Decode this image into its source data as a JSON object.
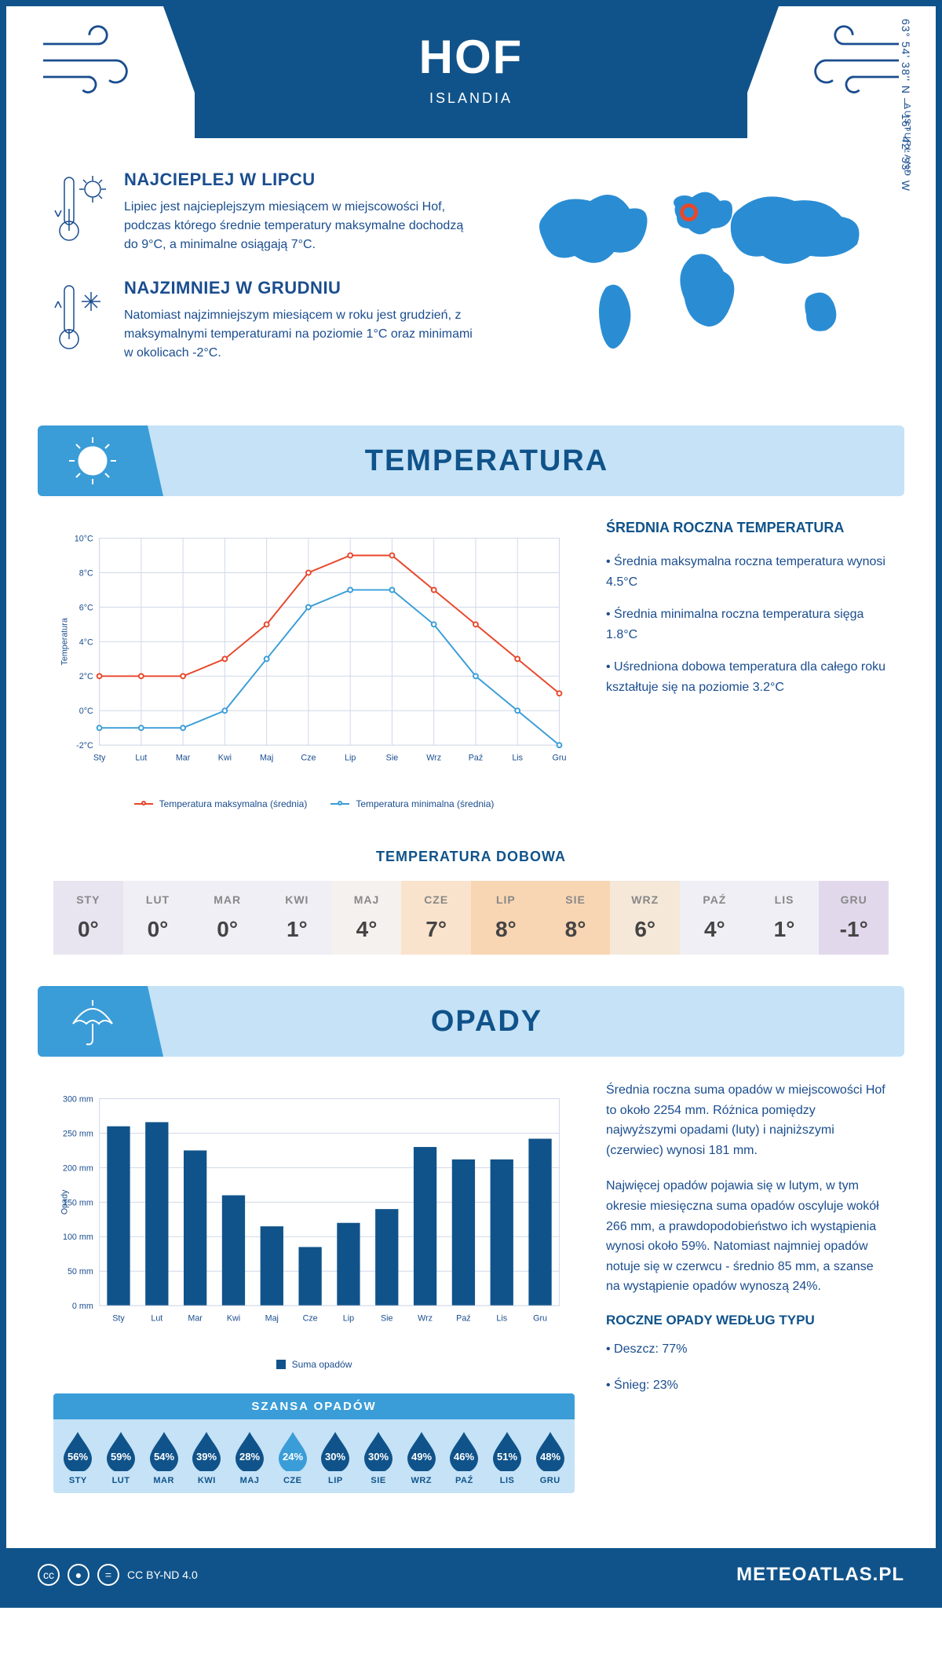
{
  "header": {
    "city": "HOF",
    "country": "ISLANDIA"
  },
  "intro": {
    "hot": {
      "title": "NAJCIEPLEJ W LIPCU",
      "text": "Lipiec jest najcieplejszym miesiącem w miejscowości Hof, podczas którego średnie temperatury maksymalne dochodzą do 9°C, a minimalne osiągają 7°C."
    },
    "cold": {
      "title": "NAJZIMNIEJ W GRUDNIU",
      "text": "Natomiast najzimniejszym miesiącem w roku jest grudzień, z maksymalnymi temperaturami na poziomie 1°C oraz minimami w okolicach -2°C."
    },
    "region": "AUSTURLAND",
    "coords": "63° 54' 38'' N — 16° 42' 33'' W",
    "marker": {
      "cx_pct": 47,
      "cy_pct": 21,
      "color": "#e8472b"
    }
  },
  "temperature": {
    "section_title": "TEMPERATURA",
    "chart": {
      "type": "line",
      "months": [
        "Sty",
        "Lut",
        "Mar",
        "Kwi",
        "Maj",
        "Cze",
        "Lip",
        "Sie",
        "Wrz",
        "Paź",
        "Lis",
        "Gru"
      ],
      "y_label": "Temperatura",
      "ylim": [
        -2,
        10
      ],
      "ytick_step": 2,
      "y_suffix": "°C",
      "grid_color": "#d0d8e8",
      "background_color": "#ffffff",
      "series": [
        {
          "name": "Temperatura maksymalna (średnia)",
          "color": "#e8472b",
          "values": [
            2,
            2,
            2,
            3,
            5,
            8,
            9,
            9,
            7,
            5,
            3,
            1
          ]
        },
        {
          "name": "Temperatura minimalna (średnia)",
          "color": "#3a9dd8",
          "values": [
            -1,
            -1,
            -1,
            0,
            3,
            6,
            7,
            7,
            5,
            2,
            0,
            -2
          ]
        }
      ],
      "line_width": 2,
      "marker_radius": 3,
      "label_fontsize": 11
    },
    "stats": {
      "title": "ŚREDNIA ROCZNA TEMPERATURA",
      "bullets": [
        "• Średnia maksymalna roczna temperatura wynosi 4.5°C",
        "• Średnia minimalna roczna temperatura sięga 1.8°C",
        "• Uśredniona dobowa temperatura dla całego roku kształtuje się na poziomie 3.2°C"
      ]
    },
    "daily": {
      "title": "TEMPERATURA DOBOWA",
      "months": [
        "STY",
        "LUT",
        "MAR",
        "KWI",
        "MAJ",
        "CZE",
        "LIP",
        "SIE",
        "WRZ",
        "PAŹ",
        "LIS",
        "GRU"
      ],
      "values": [
        "0°",
        "0°",
        "0°",
        "1°",
        "4°",
        "7°",
        "8°",
        "8°",
        "6°",
        "4°",
        "1°",
        "-1°"
      ],
      "bg_colors": [
        "#e8e4f0",
        "#efeff5",
        "#efeff5",
        "#efeff5",
        "#f5f1ee",
        "#fae3cc",
        "#f8d6b3",
        "#f8d6b3",
        "#f5e8d8",
        "#efeff5",
        "#efeff5",
        "#e2d8ec"
      ]
    }
  },
  "precipitation": {
    "section_title": "OPADY",
    "chart": {
      "type": "bar",
      "months": [
        "Sty",
        "Lut",
        "Mar",
        "Kwi",
        "Maj",
        "Cze",
        "Lip",
        "Sie",
        "Wrz",
        "Paź",
        "Lis",
        "Gru"
      ],
      "y_label": "Opady",
      "ylim": [
        0,
        300
      ],
      "ytick_step": 50,
      "y_suffix": " mm",
      "bar_color": "#10538a",
      "grid_color": "#d0d8e8",
      "background_color": "#ffffff",
      "bar_width_pct": 60,
      "values": [
        260,
        266,
        225,
        160,
        115,
        85,
        120,
        140,
        230,
        212,
        212,
        242
      ],
      "legend_label": "Suma opadów",
      "label_fontsize": 11
    },
    "text1": "Średnia roczna suma opadów w miejscowości Hof to około 2254 mm. Różnica pomiędzy najwyższymi opadami (luty) i najniższymi (czerwiec) wynosi 181 mm.",
    "text2": "Najwięcej opadów pojawia się w lutym, w tym okresie miesięczna suma opadów oscyluje wokół 266 mm, a prawdopodobieństwo ich wystąpienia wynosi około 59%. Natomiast najmniej opadów notuje się w czerwcu - średnio 85 mm, a szanse na wystąpienie opadów wynoszą 24%.",
    "chance": {
      "title": "SZANSA OPADÓW",
      "months": [
        "STY",
        "LUT",
        "MAR",
        "KWI",
        "MAJ",
        "CZE",
        "LIP",
        "SIE",
        "WRZ",
        "PAŹ",
        "LIS",
        "GRU"
      ],
      "values": [
        "56%",
        "59%",
        "54%",
        "39%",
        "28%",
        "24%",
        "30%",
        "30%",
        "49%",
        "46%",
        "51%",
        "48%"
      ],
      "drop_colors": [
        "#10538a",
        "#10538a",
        "#10538a",
        "#10538a",
        "#10538a",
        "#3a9dd8",
        "#10538a",
        "#10538a",
        "#10538a",
        "#10538a",
        "#10538a",
        "#10538a"
      ]
    },
    "by_type": {
      "title": "ROCZNE OPADY WEDŁUG TYPU",
      "bullets": [
        "• Deszcz: 77%",
        "• Śnieg: 23%"
      ]
    }
  },
  "footer": {
    "license": "CC BY-ND 4.0",
    "site": "METEOATLAS.PL"
  },
  "colors": {
    "primary": "#10538a",
    "light_blue": "#c5e2f7",
    "mid_blue": "#3a9dd8",
    "map_fill": "#2a8dd4"
  }
}
